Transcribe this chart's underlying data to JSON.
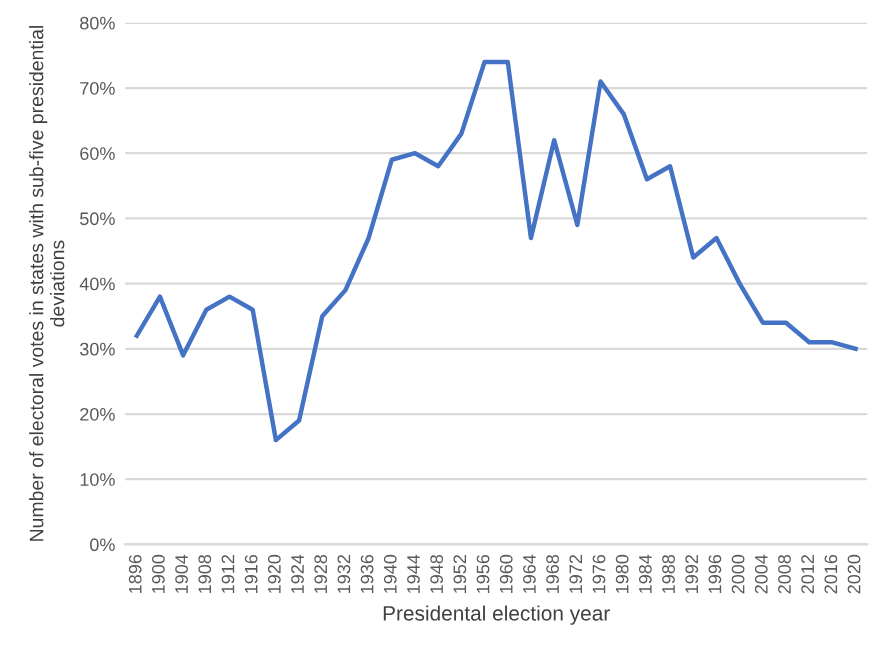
{
  "chart_data": {
    "type": "line",
    "xlabel": "Presidental election year",
    "ylabel": "Number of electoral votes in states with sub-five presidential deviations",
    "categories": [
      "1896",
      "1900",
      "1904",
      "1908",
      "1912",
      "1916",
      "1920",
      "1924",
      "1928",
      "1932",
      "1936",
      "1940",
      "1944",
      "1948",
      "1952",
      "1956",
      "1960",
      "1964",
      "1968",
      "1972",
      "1976",
      "1980",
      "1984",
      "1988",
      "1992",
      "1996",
      "2000",
      "2004",
      "2008",
      "2012",
      "2016",
      "2020"
    ],
    "series": [
      {
        "color": "#4472c4",
        "values": [
          32,
          38,
          29,
          36,
          38,
          36,
          16,
          19,
          35,
          39,
          47,
          59,
          60,
          58,
          63,
          74,
          74,
          47,
          62,
          49,
          71,
          66,
          56,
          58,
          44,
          47,
          40,
          34,
          34,
          31,
          31,
          30
        ]
      }
    ],
    "ylim": [
      0,
      80
    ],
    "yticks": [
      {
        "value": 0,
        "label": "0%"
      },
      {
        "value": 10,
        "label": "10%"
      },
      {
        "value": 20,
        "label": "20%"
      },
      {
        "value": 30,
        "label": "30%"
      },
      {
        "value": 40,
        "label": "40%"
      },
      {
        "value": 50,
        "label": "50%"
      },
      {
        "value": 60,
        "label": "60%"
      },
      {
        "value": 70,
        "label": "70%"
      },
      {
        "value": 80,
        "label": "80%"
      }
    ],
    "grid": "y",
    "marker": "none",
    "line_style": "solid"
  }
}
